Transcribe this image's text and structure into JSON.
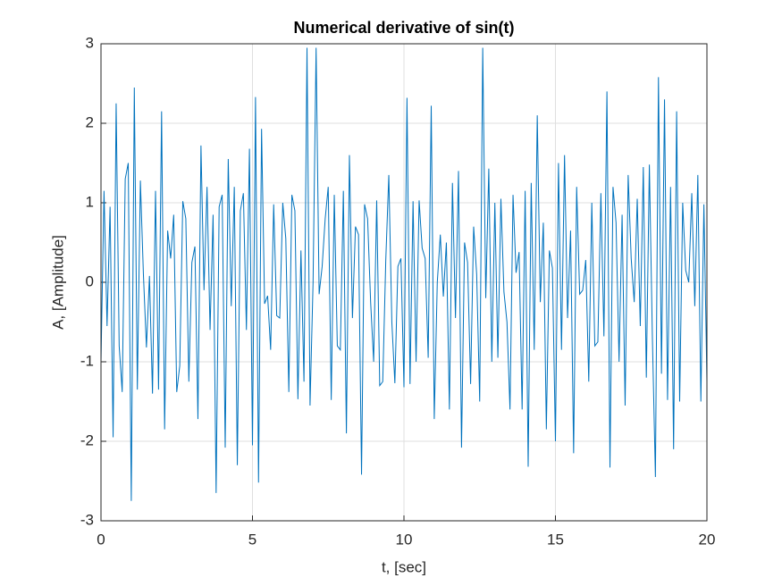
{
  "chart_data": {
    "type": "line",
    "title": "Numerical derivative of sin(t)",
    "x_label": "t, [sec]",
    "y_label": "A, [Amplitude]",
    "color": "#0072bd",
    "grid": true,
    "xlim": [
      0,
      20
    ],
    "xticks": [
      0,
      5,
      10,
      15,
      20
    ],
    "ylim": [
      -3,
      3
    ],
    "yticks": [
      -3,
      -2,
      -1,
      0,
      1,
      2,
      3
    ],
    "x": [
      0,
      0.1,
      0.2,
      0.3,
      0.4,
      0.5,
      0.6,
      0.7,
      0.8,
      0.9,
      1,
      1.1,
      1.2,
      1.3,
      1.4,
      1.5,
      1.6,
      1.7,
      1.8,
      1.9,
      2,
      2.1,
      2.2,
      2.3,
      2.4,
      2.5,
      2.6,
      2.7,
      2.8,
      2.9,
      3,
      3.1,
      3.2,
      3.3,
      3.4,
      3.5,
      3.6,
      3.7,
      3.8,
      3.9,
      4,
      4.1,
      4.2,
      4.3,
      4.4,
      4.5,
      4.6,
      4.7,
      4.8,
      4.9,
      5,
      5.1,
      5.2,
      5.3,
      5.4,
      5.5,
      5.6,
      5.7,
      5.8,
      5.9,
      6,
      6.1,
      6.2,
      6.3,
      6.4,
      6.5,
      6.6,
      6.7,
      6.8,
      6.9,
      7,
      7.1,
      7.2,
      7.3,
      7.4,
      7.5,
      7.6,
      7.7,
      7.8,
      7.9,
      8,
      8.1,
      8.2,
      8.3,
      8.4,
      8.5,
      8.6,
      8.7,
      8.8,
      8.9,
      9,
      9.1,
      9.2,
      9.3,
      9.4,
      9.5,
      9.6,
      9.7,
      9.8,
      9.9,
      10,
      10.1,
      10.2,
      10.3,
      10.4,
      10.5,
      10.6,
      10.7,
      10.8,
      10.9,
      11,
      11.1,
      11.2,
      11.3,
      11.4,
      11.5,
      11.6,
      11.7,
      11.8,
      11.9,
      12,
      12.1,
      12.2,
      12.3,
      12.4,
      12.5,
      12.6,
      12.7,
      12.8,
      12.9,
      13,
      13.1,
      13.2,
      13.3,
      13.4,
      13.5,
      13.6,
      13.7,
      13.8,
      13.9,
      14,
      14.1,
      14.2,
      14.3,
      14.4,
      14.5,
      14.6,
      14.7,
      14.8,
      14.9,
      15,
      15.1,
      15.2,
      15.3,
      15.4,
      15.5,
      15.6,
      15.7,
      15.8,
      15.9,
      16,
      16.1,
      16.2,
      16.3,
      16.4,
      16.5,
      16.6,
      16.7,
      16.8,
      16.9,
      17,
      17.1,
      17.2,
      17.3,
      17.4,
      17.5,
      17.6,
      17.7,
      17.8,
      17.9,
      18,
      18.1,
      18.2,
      18.3,
      18.4,
      18.5,
      18.6,
      18.7,
      18.8,
      18.9,
      19,
      19.1,
      19.2,
      19.3,
      19.4,
      19.5,
      19.6,
      19.7,
      19.8,
      19.9,
      20
    ],
    "values": [
      -1.0,
      1.15,
      -0.55,
      0.95,
      -1.95,
      2.25,
      -0.8,
      -1.38,
      1.3,
      1.5,
      -2.75,
      2.45,
      -1.35,
      1.28,
      0.1,
      -0.82,
      0.08,
      -1.4,
      1.15,
      -1.35,
      2.15,
      -1.85,
      0.65,
      0.3,
      0.85,
      -1.38,
      -1.05,
      1.02,
      0.8,
      -1.25,
      0.25,
      0.45,
      -1.72,
      1.72,
      -0.1,
      1.2,
      -0.6,
      0.85,
      -2.65,
      0.95,
      1.1,
      -2.08,
      1.55,
      -0.3,
      1.2,
      -2.3,
      0.9,
      1.12,
      -0.6,
      1.68,
      -2.05,
      2.33,
      -2.52,
      1.93,
      -0.27,
      -0.17,
      -0.85,
      0.98,
      -0.42,
      -0.45,
      1.0,
      0.55,
      -1.38,
      1.1,
      0.9,
      -1.47,
      0.4,
      -1.25,
      2.95,
      -1.55,
      0.0,
      2.95,
      -0.15,
      0.2,
      0.8,
      1.2,
      -1.48,
      1.1,
      -0.8,
      -0.85,
      1.15,
      -1.9,
      1.6,
      -0.45,
      0.7,
      0.6,
      -2.42,
      0.98,
      0.8,
      -0.25,
      -1.0,
      1.03,
      -1.3,
      -1.25,
      0.28,
      1.35,
      -0.5,
      -1.27,
      0.2,
      0.3,
      -1.32,
      2.32,
      -1.28,
      1.02,
      -1.0,
      1.03,
      0.43,
      0.3,
      -0.95,
      2.22,
      -1.72,
      0.0,
      0.6,
      -0.18,
      0.5,
      -1.6,
      1.25,
      -0.45,
      1.4,
      -2.08,
      0.5,
      0.25,
      -1.28,
      0.7,
      0.1,
      -1.5,
      2.95,
      -0.2,
      1.43,
      -1.0,
      1.0,
      -0.95,
      1.05,
      -0.12,
      -0.5,
      -1.6,
      1.1,
      0.12,
      0.38,
      -1.6,
      1.15,
      -2.32,
      1.25,
      -0.85,
      2.1,
      -0.25,
      0.75,
      -1.85,
      0.4,
      0.18,
      -2.0,
      1.5,
      -0.85,
      1.6,
      -0.45,
      0.65,
      -2.15,
      1.2,
      -0.15,
      -0.1,
      0.28,
      -1.25,
      1.0,
      -0.8,
      -0.75,
      1.12,
      -0.68,
      2.4,
      -2.33,
      1.2,
      0.75,
      -1.0,
      0.85,
      -1.55,
      1.35,
      0.3,
      -0.25,
      1.05,
      -0.55,
      1.45,
      -1.2,
      1.48,
      -0.7,
      -2.45,
      2.58,
      -1.15,
      2.3,
      -1.48,
      1.2,
      -2.1,
      2.15,
      -1.5,
      1.0,
      0.15,
      0.0,
      1.12,
      -0.3,
      1.35,
      -1.5,
      0.98,
      -1.25
    ]
  }
}
